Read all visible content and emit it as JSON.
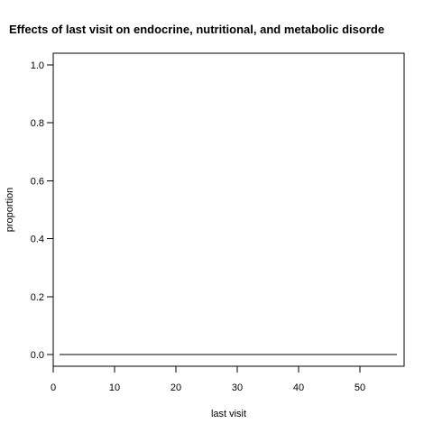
{
  "chart_data": {
    "type": "line",
    "title": "Effects of last visit on endocrine, nutritional, and metabolic disorde",
    "xlabel": "last visit",
    "ylabel": "proportion",
    "xlim": [
      0,
      57.2
    ],
    "ylim": [
      -0.04,
      1.04
    ],
    "x_ticks": [
      0,
      10,
      20,
      30,
      40,
      50
    ],
    "y_ticks": [
      0.0,
      0.2,
      0.4,
      0.6,
      0.8,
      1.0
    ],
    "x_tick_labels": [
      "0",
      "10",
      "20",
      "30",
      "40",
      "50"
    ],
    "y_tick_labels": [
      "0.0",
      "0.2",
      "0.4",
      "0.6",
      "0.8",
      "1.0"
    ],
    "grid": false,
    "series": [
      {
        "x": [
          1,
          56
        ],
        "y": [
          0.0,
          0.0
        ],
        "color": "#000000"
      }
    ]
  }
}
